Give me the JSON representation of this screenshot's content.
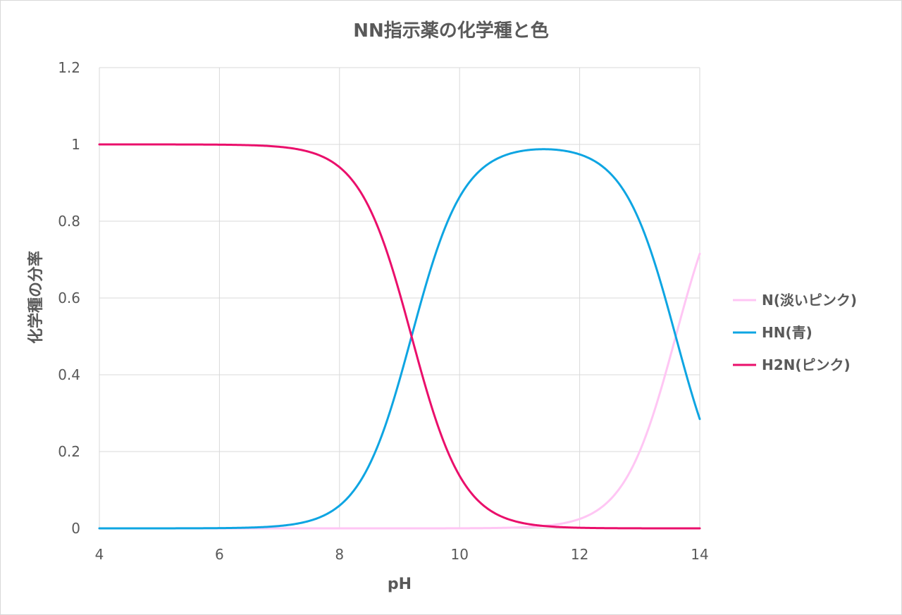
{
  "chart_data": {
    "type": "line",
    "title": "NN指示薬の化学種と色",
    "xlabel": "pH",
    "ylabel": "化学種の分率",
    "xlim": [
      4,
      14
    ],
    "ylim": [
      0,
      1.2
    ],
    "x_ticks": [
      "4",
      "6",
      "8",
      "10",
      "12",
      "14"
    ],
    "y_ticks": [
      "0",
      "0.2",
      "0.4",
      "0.6",
      "0.8",
      "1",
      "1.2"
    ],
    "grid": true,
    "legend_position": "right",
    "pKa1": 9.2,
    "pKa2": 13.6,
    "x": [
      4,
      4.5,
      5,
      5.5,
      6,
      6.5,
      7,
      7.5,
      8,
      8.5,
      9,
      9.5,
      10,
      10.5,
      11,
      11.5,
      12,
      12.5,
      13,
      13.5,
      14
    ],
    "series": [
      {
        "name": "N(淡いピンク)",
        "color": "#ffc6f4",
        "values": [
          0,
          0,
          0,
          0,
          0,
          0,
          0,
          0,
          0,
          0,
          0,
          0,
          0,
          0,
          0.003,
          0.008,
          0.025,
          0.074,
          0.2,
          0.44,
          0.715
        ]
      },
      {
        "name": "HN(青)",
        "color": "#0ea5e2",
        "values": [
          0,
          0,
          0,
          0,
          0.002,
          0.005,
          0.006,
          0.016,
          0.059,
          0.166,
          0.387,
          0.665,
          0.862,
          0.948,
          0.976,
          0.986,
          0.97,
          0.923,
          0.8,
          0.56,
          0.285
        ]
      },
      {
        "name": "H2N(ピンク)",
        "color": "#ea0f6b",
        "values": [
          1,
          1,
          1,
          1,
          0.998,
          0.995,
          0.994,
          0.984,
          0.941,
          0.834,
          0.613,
          0.335,
          0.138,
          0.052,
          0.021,
          0.006,
          0.005,
          0.003,
          0.0,
          0.0,
          0.0
        ]
      }
    ]
  }
}
